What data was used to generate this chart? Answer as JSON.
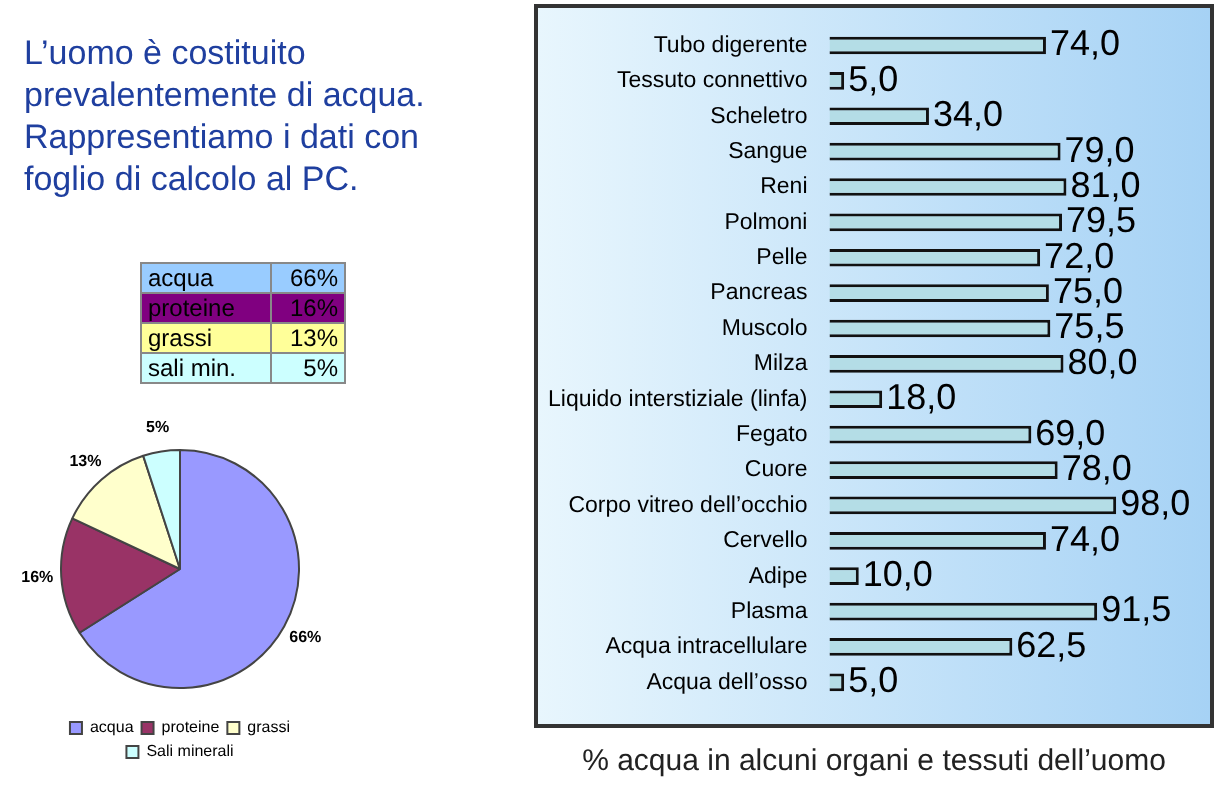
{
  "chart_data": [
    {
      "type": "other",
      "title": "L’uomo è costituito prevalentemente di acqua. Rappresentiamo i dati con foglio di calcolo al PC."
    },
    {
      "type": "other",
      "categories": [
        "acqua",
        "proteine",
        "grassi",
        "sali min."
      ],
      "value_labels": [
        "66%",
        "16%",
        "13%",
        "5%"
      ],
      "colors": [
        "#99ccff",
        "#800080",
        "#ffff99",
        "#ccffff"
      ]
    },
    {
      "type": "pie",
      "categories": [
        "acqua",
        "proteine",
        "grassi",
        "Sali minerali"
      ],
      "values": [
        66,
        16,
        13,
        5
      ],
      "value_labels": [
        "66%",
        "16%",
        "13%",
        "5%"
      ],
      "colors": [
        "#9999ff",
        "#993366",
        "#ffffcc",
        "#ccffff"
      ],
      "legend": "bottom"
    },
    {
      "type": "bar",
      "orientation": "horizontal",
      "title": "% acqua in alcuni organi e tessuti dell’uomo",
      "categories": [
        "Tubo digerente",
        "Tessuto connettivo",
        "Scheletro",
        "Sangue",
        "Reni",
        "Polmoni",
        "Pelle",
        "Pancreas",
        "Muscolo",
        "Milza",
        "Liquido interstiziale (linfa)",
        "Fegato",
        "Cuore",
        "Corpo vitreo dell’occhio",
        "Cervello",
        "Adipe",
        "Plasma",
        "Acqua intracellulare",
        "Acqua dell’osso"
      ],
      "values": [
        74,
        5,
        34,
        79,
        81,
        79.5,
        72,
        75,
        75.5,
        80,
        18,
        69,
        78,
        98,
        74,
        10,
        91.5,
        62.5,
        5
      ],
      "value_labels": [
        "74,0",
        "5,0",
        "34,0",
        "79,0",
        "81,0",
        "79,5",
        "72,0",
        "75,0",
        "75,5",
        "80,0",
        "18,0",
        "69,0",
        "78,0",
        "98,0",
        "74,0",
        "10,0",
        "91,5",
        "62,5",
        "5,0"
      ],
      "color": "#b4dde6",
      "legend": false
    }
  ]
}
